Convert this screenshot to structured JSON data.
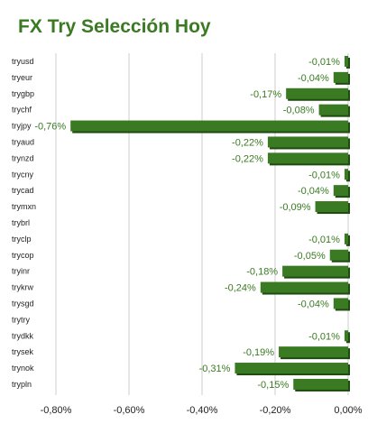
{
  "chart_data": {
    "type": "bar",
    "orientation": "horizontal",
    "title": "FX Try Selección Hoy",
    "xlabel": "",
    "ylabel": "",
    "xlim": [
      -0.8,
      0.0
    ],
    "x_ticks": [
      -0.8,
      -0.6,
      -0.4,
      -0.2,
      0.0
    ],
    "x_tick_labels": [
      "-0,80%",
      "-0,60%",
      "-0,40%",
      "-0,20%",
      "0,00%"
    ],
    "grid": true,
    "legend": "none",
    "categories": [
      "tryusd",
      "tryeur",
      "trygbp",
      "trychf",
      "tryjpy",
      "tryaud",
      "trynzd",
      "trycny",
      "trycad",
      "trymxn",
      "trybrl",
      "tryclp",
      "trycop",
      "tryinr",
      "trykrw",
      "trysgd",
      "trytry",
      "trydkk",
      "trysek",
      "trynok",
      "trypln"
    ],
    "values": [
      -0.01,
      -0.04,
      -0.17,
      -0.08,
      -0.76,
      -0.22,
      -0.22,
      -0.01,
      -0.04,
      -0.09,
      0.0,
      -0.01,
      -0.05,
      -0.18,
      -0.24,
      -0.04,
      0.0,
      -0.01,
      -0.19,
      -0.31,
      -0.15
    ],
    "value_labels": [
      "-0,01%",
      "-0,04%",
      "-0,17%",
      "-0,08%",
      "-0,76%",
      "-0,22%",
      "-0,22%",
      "-0,01%",
      "-0,04%",
      "-0,09%",
      "",
      "-0,01%",
      "-0,05%",
      "-0,18%",
      "-0,24%",
      "-0,04%",
      "",
      "-0,01%",
      "-0,19%",
      "-0,31%",
      "-0,15%"
    ],
    "colors": {
      "bar": "#3a7a22",
      "bar_shadow": "#1f4a12",
      "grid": "#cccccc",
      "title": "#3a7a22"
    }
  }
}
